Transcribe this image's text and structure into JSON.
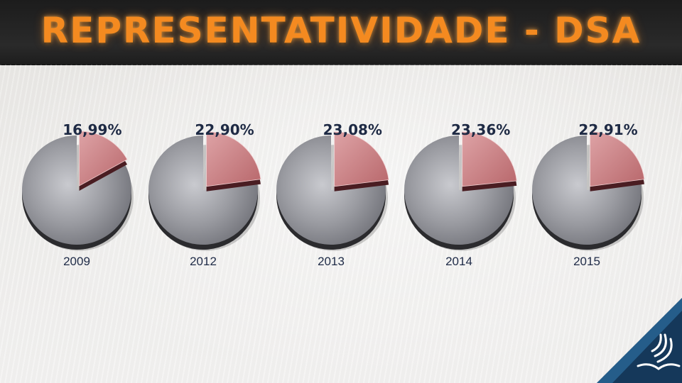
{
  "title": "REPRESENTATIVIDADE - DSA",
  "chart_data": {
    "type": "pie",
    "title": "REPRESENTATIVIDADE - DSA",
    "pies": [
      {
        "year": "2009",
        "value": 16.99,
        "label": "16,99%"
      },
      {
        "year": "2012",
        "value": 22.9,
        "label": "22,90%"
      },
      {
        "year": "2013",
        "value": 23.08,
        "label": "23,08%"
      },
      {
        "year": "2014",
        "value": 23.36,
        "label": "23,36%"
      },
      {
        "year": "2015",
        "value": 22.91,
        "label": "22,91%"
      }
    ],
    "colors": {
      "highlight": "#c9787c",
      "rest": "#8e8f95"
    }
  }
}
